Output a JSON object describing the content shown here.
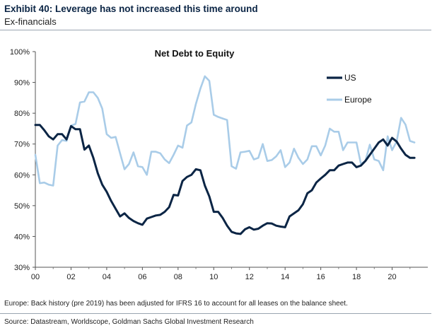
{
  "exhibit": {
    "title": "Exhibit 40: Leverage has not increased this time around",
    "subtitle": "Ex-financials",
    "footnote": "Europe: Back history (pre 2019) has been adjusted for IFRS 16 to account for all leases on the balance sheet.",
    "source": "Source: Datastream, Worldscope, Goldman Sachs Global Investment Research"
  },
  "chart_data": {
    "type": "line",
    "title": "Net Debt to Equity",
    "xlabel": "",
    "ylabel": "",
    "xlim": [
      0,
      22
    ],
    "ylim": [
      30,
      100
    ],
    "x_ticks": [
      0,
      2,
      4,
      6,
      8,
      10,
      12,
      14,
      16,
      18,
      20
    ],
    "x_tick_labels": [
      "00",
      "02",
      "04",
      "06",
      "08",
      "10",
      "12",
      "14",
      "16",
      "18",
      "20"
    ],
    "y_ticks": [
      30,
      40,
      50,
      60,
      70,
      80,
      90,
      100
    ],
    "y_tick_labels": [
      "30%",
      "40%",
      "50%",
      "60%",
      "70%",
      "80%",
      "90%",
      "100%"
    ],
    "grid": false,
    "legend_position": "top-right",
    "series": [
      {
        "name": "US",
        "color": "#0b2545",
        "x": [
          0,
          0.25,
          0.5,
          0.75,
          1,
          1.25,
          1.5,
          1.75,
          2,
          2.25,
          2.5,
          2.75,
          3,
          3.25,
          3.5,
          3.75,
          4,
          4.25,
          4.5,
          4.75,
          5,
          5.25,
          5.5,
          5.75,
          6,
          6.25,
          6.5,
          6.75,
          7,
          7.25,
          7.5,
          7.75,
          8,
          8.25,
          8.5,
          8.75,
          9,
          9.25,
          9.5,
          9.75,
          10,
          10.25,
          10.5,
          10.75,
          11,
          11.25,
          11.5,
          11.75,
          12,
          12.25,
          12.5,
          12.75,
          13,
          13.25,
          13.5,
          13.75,
          14,
          14.25,
          14.5,
          14.75,
          15,
          15.25,
          15.5,
          15.75,
          16,
          16.25,
          16.5,
          16.75,
          17,
          17.25,
          17.5,
          17.75,
          18,
          18.25,
          18.5,
          18.75,
          19,
          19.25,
          19.5,
          19.75,
          20,
          20.25,
          20.5,
          20.75,
          21,
          21.25
        ],
        "values": [
          76.2,
          76.2,
          74.5,
          72.5,
          71.5,
          73.2,
          73.2,
          71.5,
          75.8,
          74.8,
          74.8,
          68.2,
          69.5,
          65.5,
          60.5,
          56.8,
          54.5,
          51.5,
          49.0,
          46.5,
          47.5,
          46.0,
          45.0,
          44.3,
          43.8,
          45.8,
          46.3,
          46.8,
          47.0,
          48.0,
          49.5,
          53.5,
          53.3,
          58.0,
          59.3,
          60.0,
          61.8,
          61.5,
          56.5,
          53.0,
          48.0,
          48.0,
          46.0,
          43.5,
          41.5,
          41.0,
          40.8,
          42.3,
          43.0,
          42.2,
          42.5,
          43.5,
          44.3,
          44.2,
          43.5,
          43.2,
          43.0,
          46.5,
          47.5,
          48.5,
          50.5,
          54.0,
          55.0,
          57.5,
          58.8,
          60.0,
          61.5,
          61.5,
          63.0,
          63.5,
          64.0,
          64.0,
          62.5,
          63.0,
          64.5,
          66.5,
          68.5,
          70.5,
          71.5,
          69.5,
          72.0,
          70.8,
          68.5,
          66.5,
          65.5,
          65.5
        ]
      },
      {
        "name": "Europe",
        "color": "#a9cce8",
        "x": [
          0,
          0.25,
          0.5,
          0.75,
          1,
          1.25,
          1.5,
          1.75,
          2,
          2.25,
          2.5,
          2.75,
          3,
          3.25,
          3.5,
          3.75,
          4,
          4.25,
          4.5,
          4.75,
          5,
          5.25,
          5.5,
          5.75,
          6,
          6.25,
          6.5,
          6.75,
          7,
          7.25,
          7.5,
          7.75,
          8,
          8.25,
          8.5,
          8.75,
          9,
          9.25,
          9.5,
          9.75,
          10,
          10.25,
          10.5,
          10.75,
          11,
          11.25,
          11.5,
          11.75,
          12,
          12.25,
          12.5,
          12.75,
          13,
          13.25,
          13.5,
          13.75,
          14,
          14.25,
          14.5,
          14.75,
          15,
          15.25,
          15.5,
          15.75,
          16,
          16.25,
          16.5,
          16.75,
          17,
          17.25,
          17.5,
          17.75,
          18,
          18.25,
          18.5,
          18.75,
          19,
          19.25,
          19.5,
          19.75,
          20,
          20.25,
          20.5,
          20.75,
          21,
          21.25
        ],
        "values": [
          66.5,
          57.3,
          57.5,
          56.8,
          56.5,
          69.5,
          71.3,
          71.0,
          76.0,
          76.5,
          83.5,
          83.8,
          86.8,
          86.8,
          85.0,
          81.5,
          73.2,
          72.0,
          72.3,
          67.0,
          61.8,
          63.5,
          67.3,
          62.8,
          62.5,
          60.0,
          67.5,
          67.5,
          67.0,
          65.0,
          63.8,
          66.5,
          69.5,
          68.8,
          76.0,
          77.0,
          83.0,
          88.0,
          92.0,
          90.5,
          79.5,
          78.8,
          78.3,
          77.8,
          62.8,
          62.0,
          67.3,
          67.5,
          67.8,
          65.0,
          65.5,
          70.0,
          64.5,
          64.8,
          66.0,
          68.0,
          62.5,
          64.0,
          68.5,
          65.5,
          63.5,
          65.0,
          69.3,
          69.3,
          66.3,
          69.5,
          75.0,
          74.0,
          74.0,
          68.0,
          70.5,
          70.5,
          70.5,
          63.5,
          64.5,
          69.8,
          65.0,
          64.5,
          61.5,
          72.5,
          68.0,
          70.8,
          78.5,
          76.3,
          71.0,
          70.5
        ]
      }
    ]
  }
}
